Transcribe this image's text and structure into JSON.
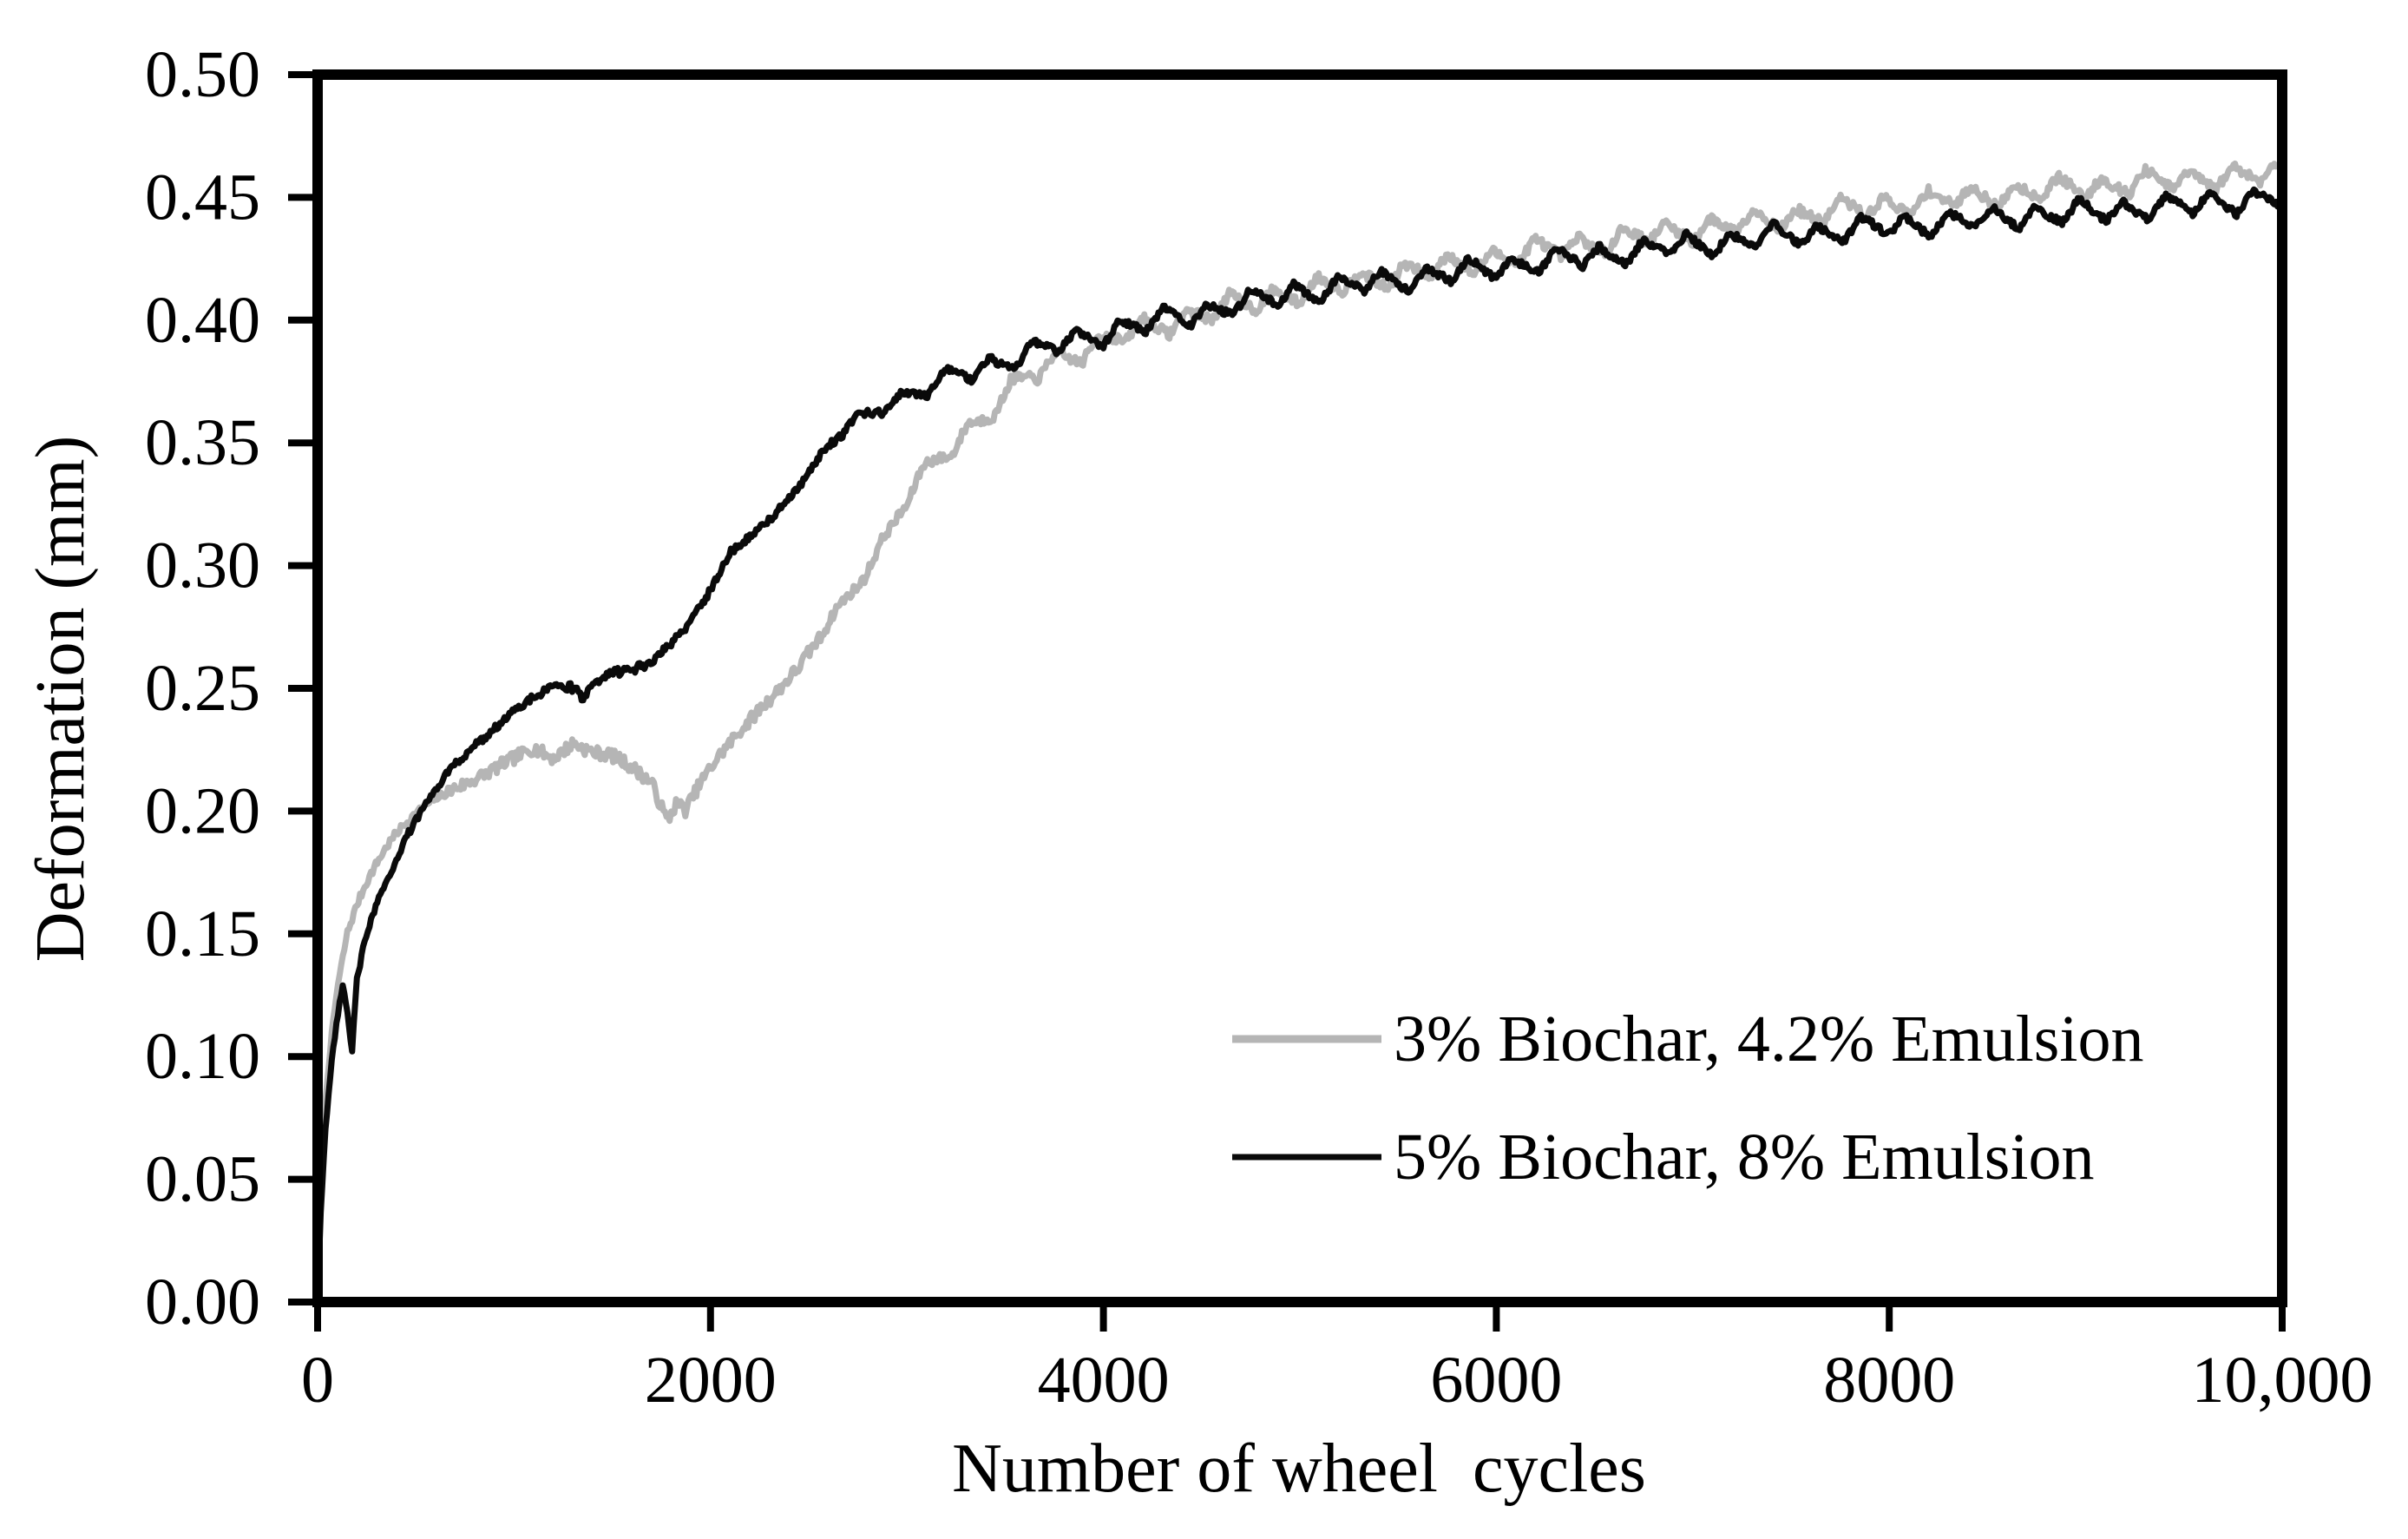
{
  "figure": {
    "background": "#ffffff"
  },
  "chart_data": {
    "type": "line",
    "title": "",
    "xlabel": "Number of wheel  cycles",
    "ylabel": "Deformation (mm)",
    "xlim": [
      0,
      10000
    ],
    "ylim": [
      0.0,
      0.5
    ],
    "grid": false,
    "frame": "full-box",
    "axis_color": "#000000",
    "legend_position": "inside-lower-right",
    "x_ticks": [
      {
        "v": 0,
        "label": "0"
      },
      {
        "v": 2000,
        "label": "2000"
      },
      {
        "v": 4000,
        "label": "4000"
      },
      {
        "v": 6000,
        "label": "6000"
      },
      {
        "v": 8000,
        "label": "8000"
      },
      {
        "v": 10000,
        "label": "10,000"
      }
    ],
    "y_ticks": [
      {
        "v": 0.0,
        "label": "0.00"
      },
      {
        "v": 0.05,
        "label": "0.05"
      },
      {
        "v": 0.1,
        "label": "0.10"
      },
      {
        "v": 0.15,
        "label": "0.15"
      },
      {
        "v": 0.2,
        "label": "0.20"
      },
      {
        "v": 0.25,
        "label": "0.25"
      },
      {
        "v": 0.3,
        "label": "0.30"
      },
      {
        "v": 0.35,
        "label": "0.35"
      },
      {
        "v": 0.4,
        "label": "0.40"
      },
      {
        "v": 0.45,
        "label": "0.45"
      },
      {
        "v": 0.5,
        "label": "0.50"
      }
    ],
    "series": [
      {
        "name": "3% Biochar, 4.2% Emulsion",
        "color": "#b5b5b5",
        "points": [
          [
            0,
            0
          ],
          [
            15,
            0.042
          ],
          [
            40,
            0.082
          ],
          [
            70,
            0.108
          ],
          [
            100,
            0.128
          ],
          [
            150,
            0.151
          ],
          [
            200,
            0.163
          ],
          [
            250,
            0.172
          ],
          [
            300,
            0.179
          ],
          [
            350,
            0.185
          ],
          [
            400,
            0.19
          ],
          [
            450,
            0.194
          ],
          [
            500,
            0.198
          ],
          [
            600,
            0.2055
          ],
          [
            700,
            0.2105
          ],
          [
            800,
            0.2135
          ],
          [
            900,
            0.2165
          ],
          [
            1000,
            0.2205
          ],
          [
            1100,
            0.2255
          ],
          [
            1200,
            0.2225
          ],
          [
            1300,
            0.2285
          ],
          [
            1400,
            0.2235
          ],
          [
            1500,
            0.2215
          ],
          [
            1600,
            0.2175
          ],
          [
            1700,
            0.2125
          ],
          [
            1780,
            0.197
          ],
          [
            1830,
            0.2045
          ],
          [
            1870,
            0.2005
          ],
          [
            1950,
            0.211
          ],
          [
            2050,
            0.222
          ],
          [
            2150,
            0.2325
          ],
          [
            2250,
            0.2425
          ],
          [
            2350,
            0.2505
          ],
          [
            2450,
            0.258
          ],
          [
            2550,
            0.2695
          ],
          [
            2650,
            0.282
          ],
          [
            2750,
            0.2935
          ],
          [
            2850,
            0.306
          ],
          [
            2950,
            0.32
          ],
          [
            3050,
            0.3335
          ],
          [
            3150,
            0.3425
          ],
          [
            3250,
            0.3505
          ],
          [
            3350,
            0.358
          ],
          [
            3450,
            0.3655
          ],
          [
            3550,
            0.3725
          ],
          [
            3650,
            0.3785
          ],
          [
            3750,
            0.383
          ],
          [
            3850,
            0.3865
          ],
          [
            3950,
            0.3895
          ],
          [
            4050,
            0.3925
          ],
          [
            4200,
            0.3965
          ],
          [
            4400,
            0.4005
          ],
          [
            4600,
            0.4045
          ],
          [
            4800,
            0.4085
          ],
          [
            5000,
            0.4115
          ],
          [
            5200,
            0.4145
          ],
          [
            5400,
            0.4175
          ],
          [
            5600,
            0.42
          ],
          [
            5800,
            0.4225
          ],
          [
            6000,
            0.4255
          ],
          [
            6200,
            0.428
          ],
          [
            6400,
            0.4305
          ],
          [
            6600,
            0.4325
          ],
          [
            6800,
            0.435
          ],
          [
            7000,
            0.437
          ],
          [
            7200,
            0.439
          ],
          [
            7400,
            0.441
          ],
          [
            7600,
            0.443
          ],
          [
            7800,
            0.445
          ],
          [
            8000,
            0.447
          ],
          [
            8200,
            0.4485
          ],
          [
            8400,
            0.45
          ],
          [
            8600,
            0.4515
          ],
          [
            8800,
            0.453
          ],
          [
            9000,
            0.4545
          ],
          [
            9200,
            0.4555
          ],
          [
            9400,
            0.4565
          ],
          [
            9600,
            0.4578
          ],
          [
            9800,
            0.459
          ],
          [
            10000,
            0.46
          ]
        ]
      },
      {
        "name": "5% Biochar, 8% Emulsion",
        "color": "#0a0a0a",
        "points": [
          [
            0,
            0
          ],
          [
            15,
            0.035
          ],
          [
            40,
            0.07
          ],
          [
            70,
            0.096
          ],
          [
            100,
            0.115
          ],
          [
            130,
            0.13
          ],
          [
            155,
            0.115
          ],
          [
            175,
            0.101
          ],
          [
            200,
            0.132
          ],
          [
            250,
            0.151
          ],
          [
            300,
            0.163
          ],
          [
            350,
            0.173
          ],
          [
            400,
            0.181
          ],
          [
            450,
            0.189
          ],
          [
            500,
            0.196
          ],
          [
            600,
            0.208
          ],
          [
            700,
            0.2185
          ],
          [
            800,
            0.2275
          ],
          [
            900,
            0.2345
          ],
          [
            1000,
            0.2405
          ],
          [
            1100,
            0.2455
          ],
          [
            1200,
            0.2495
          ],
          [
            1280,
            0.2515
          ],
          [
            1350,
            0.2475
          ],
          [
            1420,
            0.2535
          ],
          [
            1500,
            0.2565
          ],
          [
            1600,
            0.2555
          ],
          [
            1700,
            0.2605
          ],
          [
            1800,
            0.2685
          ],
          [
            1900,
            0.2785
          ],
          [
            2000,
            0.2905
          ],
          [
            2100,
            0.3045
          ],
          [
            2200,
            0.3105
          ],
          [
            2300,
            0.3185
          ],
          [
            2400,
            0.3285
          ],
          [
            2500,
            0.3385
          ],
          [
            2600,
            0.3485
          ],
          [
            2700,
            0.3555
          ],
          [
            2800,
            0.3615
          ],
          [
            2900,
            0.366
          ],
          [
            3000,
            0.3695
          ],
          [
            3100,
            0.3725
          ],
          [
            3200,
            0.3755
          ],
          [
            3300,
            0.3785
          ],
          [
            3400,
            0.381
          ],
          [
            3500,
            0.3835
          ],
          [
            3600,
            0.386
          ],
          [
            3700,
            0.3885
          ],
          [
            3800,
            0.3905
          ],
          [
            3900,
            0.3925
          ],
          [
            4000,
            0.3945
          ],
          [
            4150,
            0.3975
          ],
          [
            4300,
            0.4
          ],
          [
            4450,
            0.4025
          ],
          [
            4600,
            0.405
          ],
          [
            4750,
            0.4075
          ],
          [
            4900,
            0.41
          ],
          [
            5100,
            0.4125
          ],
          [
            5300,
            0.4145
          ],
          [
            5500,
            0.4165
          ],
          [
            5700,
            0.4185
          ],
          [
            5900,
            0.4205
          ],
          [
            6100,
            0.4225
          ],
          [
            6300,
            0.4245
          ],
          [
            6500,
            0.426
          ],
          [
            6700,
            0.428
          ],
          [
            6900,
            0.4295
          ],
          [
            7100,
            0.4315
          ],
          [
            7300,
            0.433
          ],
          [
            7500,
            0.4345
          ],
          [
            7700,
            0.436
          ],
          [
            7900,
            0.4375
          ],
          [
            8100,
            0.4385
          ],
          [
            8300,
            0.44
          ],
          [
            8500,
            0.441
          ],
          [
            8700,
            0.4425
          ],
          [
            8900,
            0.4435
          ],
          [
            9100,
            0.4445
          ],
          [
            9300,
            0.4455
          ],
          [
            9500,
            0.4465
          ],
          [
            9700,
            0.448
          ],
          [
            9900,
            0.4495
          ],
          [
            10000,
            0.45
          ]
        ]
      }
    ]
  }
}
